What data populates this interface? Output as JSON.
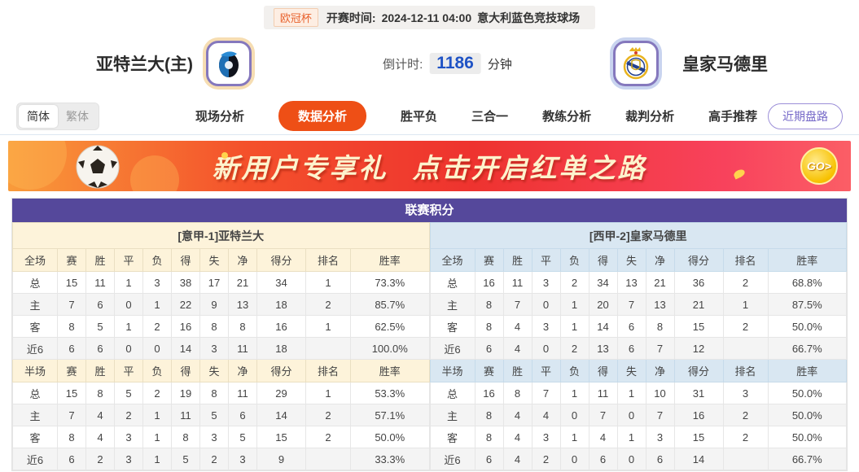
{
  "match_header": {
    "league_badge": "欧冠杯",
    "kickoff_label": "开赛时间:",
    "kickoff_time": "2024-12-11 04:00",
    "venue": "意大利蓝色竞技球场",
    "home_team": "亚特兰大(主)",
    "away_team": "皇家马德里",
    "countdown_label": "倒计时:",
    "countdown_value": "1186",
    "countdown_unit": "分钟"
  },
  "nav": {
    "lang_options": [
      {
        "label": "简体",
        "active": true
      },
      {
        "label": "繁体",
        "active": false
      }
    ],
    "tabs": [
      {
        "label": "现场分析",
        "active": false
      },
      {
        "label": "数据分析",
        "active": true
      },
      {
        "label": "胜平负",
        "active": false
      },
      {
        "label": "三合一",
        "active": false
      },
      {
        "label": "教练分析",
        "active": false
      },
      {
        "label": "裁判分析",
        "active": false
      },
      {
        "label": "高手推荐",
        "active": false
      }
    ],
    "recent_odds_button": "近期盘路"
  },
  "banner": {
    "headline": "新用户专享礼",
    "subline": "点击开启红单之路",
    "go_label": "GO>"
  },
  "standings": {
    "title": "联赛积分",
    "columns": [
      "赛",
      "胜",
      "平",
      "负",
      "得",
      "失",
      "净",
      "得分",
      "排名",
      "胜率"
    ],
    "halves": [
      {
        "side": "left",
        "team_header": "[意甲-1]亚特兰大",
        "sections": [
          {
            "scope": "全场",
            "rows": [
              {
                "label": "总",
                "type": "total",
                "values": [
                  "15",
                  "11",
                  "1",
                  "3",
                  "38",
                  "17",
                  "21",
                  "34",
                  "1",
                  "73.3%"
                ]
              },
              {
                "label": "主",
                "type": "home",
                "values": [
                  "7",
                  "6",
                  "0",
                  "1",
                  "22",
                  "9",
                  "13",
                  "18",
                  "2",
                  "85.7%"
                ]
              },
              {
                "label": "客",
                "type": "away",
                "values": [
                  "8",
                  "5",
                  "1",
                  "2",
                  "16",
                  "8",
                  "8",
                  "16",
                  "1",
                  "62.5%"
                ]
              },
              {
                "label": "近6",
                "type": "recent",
                "values": [
                  "6",
                  "6",
                  "0",
                  "0",
                  "14",
                  "3",
                  "11",
                  "18",
                  "",
                  "100.0%"
                ]
              }
            ]
          },
          {
            "scope": "半场",
            "rows": [
              {
                "label": "总",
                "type": "total",
                "values": [
                  "15",
                  "8",
                  "5",
                  "2",
                  "19",
                  "8",
                  "11",
                  "29",
                  "1",
                  "53.3%"
                ]
              },
              {
                "label": "主",
                "type": "home",
                "values": [
                  "7",
                  "4",
                  "2",
                  "1",
                  "11",
                  "5",
                  "6",
                  "14",
                  "2",
                  "57.1%"
                ]
              },
              {
                "label": "客",
                "type": "away",
                "values": [
                  "8",
                  "4",
                  "3",
                  "1",
                  "8",
                  "3",
                  "5",
                  "15",
                  "2",
                  "50.0%"
                ]
              },
              {
                "label": "近6",
                "type": "recent",
                "values": [
                  "6",
                  "2",
                  "3",
                  "1",
                  "5",
                  "2",
                  "3",
                  "9",
                  "",
                  "33.3%"
                ]
              }
            ]
          }
        ]
      },
      {
        "side": "right",
        "team_header": "[西甲-2]皇家马德里",
        "sections": [
          {
            "scope": "全场",
            "rows": [
              {
                "label": "总",
                "type": "total",
                "values": [
                  "16",
                  "11",
                  "3",
                  "2",
                  "34",
                  "13",
                  "21",
                  "36",
                  "2",
                  "68.8%"
                ]
              },
              {
                "label": "主",
                "type": "home",
                "values": [
                  "8",
                  "7",
                  "0",
                  "1",
                  "20",
                  "7",
                  "13",
                  "21",
                  "1",
                  "87.5%"
                ]
              },
              {
                "label": "客",
                "type": "away",
                "values": [
                  "8",
                  "4",
                  "3",
                  "1",
                  "14",
                  "6",
                  "8",
                  "15",
                  "2",
                  "50.0%"
                ]
              },
              {
                "label": "近6",
                "type": "recent",
                "values": [
                  "6",
                  "4",
                  "0",
                  "2",
                  "13",
                  "6",
                  "7",
                  "12",
                  "",
                  "66.7%"
                ]
              }
            ]
          },
          {
            "scope": "半场",
            "rows": [
              {
                "label": "总",
                "type": "total",
                "values": [
                  "16",
                  "8",
                  "7",
                  "1",
                  "11",
                  "1",
                  "10",
                  "31",
                  "3",
                  "50.0%"
                ]
              },
              {
                "label": "主",
                "type": "home",
                "values": [
                  "8",
                  "4",
                  "4",
                  "0",
                  "7",
                  "0",
                  "7",
                  "16",
                  "2",
                  "50.0%"
                ]
              },
              {
                "label": "客",
                "type": "away",
                "values": [
                  "8",
                  "4",
                  "3",
                  "1",
                  "4",
                  "1",
                  "3",
                  "15",
                  "2",
                  "50.0%"
                ]
              },
              {
                "label": "近6",
                "type": "recent",
                "values": [
                  "6",
                  "4",
                  "2",
                  "0",
                  "6",
                  "0",
                  "6",
                  "14",
                  "",
                  "66.7%"
                ]
              }
            ]
          }
        ]
      }
    ]
  },
  "colors": {
    "accent_orange": "#ee4f16",
    "title_purple": "#55489b",
    "home_row_red": "#cc3333",
    "away_row_blue": "#2f4bcc",
    "countdown_blue": "#1f53c5",
    "left_header_bg": "#fdf3da",
    "right_header_bg": "#d9e7f2"
  }
}
